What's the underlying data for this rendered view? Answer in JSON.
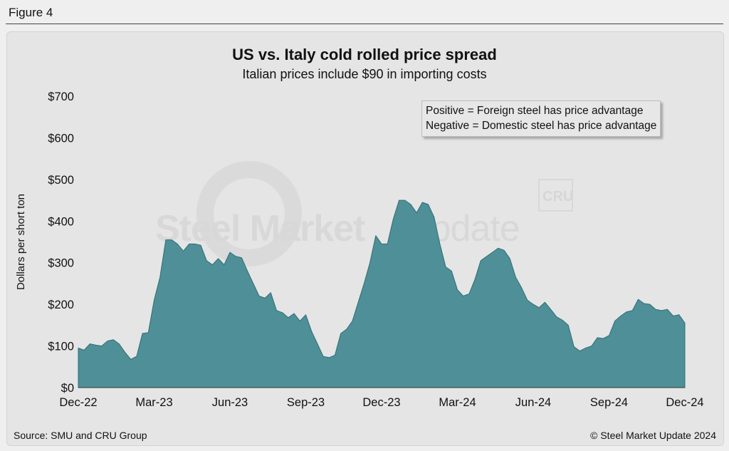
{
  "figure_label": "Figure 4",
  "legend": {
    "line1": "Positive = Foreign steel has price advantage",
    "line2": "Negative = Domestic steel has price advantage"
  },
  "watermark": {
    "text_bold": "Steel Market",
    "text_light": "Update",
    "logo": "CRU"
  },
  "footer": {
    "source": "Source: SMU and CRU Group",
    "copyright": "© Steel Market Update 2024"
  },
  "colors": {
    "area_fill": "#4f8f97",
    "area_stroke": "#2f6e76",
    "background": "#e5e5e5"
  },
  "chart_data": {
    "type": "area",
    "title": "US vs. Italy cold rolled price spread",
    "subtitle": "Italian prices include $90 in importing costs",
    "xlabel": "",
    "ylabel": "Dollars per short ton",
    "ylim": [
      0,
      700
    ],
    "yticks": [
      0,
      100,
      200,
      300,
      400,
      500,
      600,
      700
    ],
    "ytick_labels": [
      "$0",
      "$100",
      "$200",
      "$300",
      "$400",
      "$500",
      "$600",
      "$700"
    ],
    "xlim": [
      0,
      104
    ],
    "xtick_positions": [
      0,
      13,
      26,
      39,
      52,
      65,
      78,
      91,
      104
    ],
    "xtick_labels": [
      "Dec-22",
      "Mar-23",
      "Jun-23",
      "Sep-23",
      "Dec-23",
      "Mar-24",
      "Jun-24",
      "Sep-24",
      "Dec-24"
    ],
    "series": [
      {
        "name": "US vs. Italy CR spread",
        "x": [
          0,
          1,
          2,
          3,
          4,
          5,
          6,
          7,
          8,
          9,
          10,
          11,
          12,
          13,
          14,
          15,
          16,
          17,
          18,
          19,
          20,
          21,
          22,
          23,
          24,
          25,
          26,
          27,
          28,
          29,
          30,
          31,
          32,
          33,
          34,
          35,
          36,
          37,
          38,
          39,
          40,
          41,
          42,
          43,
          44,
          45,
          46,
          47,
          48,
          49,
          50,
          51,
          52,
          53,
          54,
          55,
          56,
          57,
          58,
          59,
          60,
          61,
          62,
          63,
          64,
          65,
          66,
          67,
          68,
          69,
          70,
          71,
          72,
          73,
          74,
          75,
          76,
          77,
          78,
          79,
          80,
          81,
          82,
          83,
          84,
          85,
          86,
          87,
          88,
          89,
          90,
          91,
          92,
          93,
          94,
          95,
          96,
          97,
          98,
          99,
          100,
          101,
          102,
          103,
          104
        ],
        "values": [
          95,
          90,
          105,
          102,
          100,
          112,
          115,
          105,
          85,
          68,
          75,
          130,
          132,
          210,
          265,
          355,
          355,
          345,
          328,
          345,
          345,
          342,
          305,
          295,
          310,
          295,
          325,
          315,
          312,
          280,
          250,
          220,
          215,
          228,
          185,
          180,
          168,
          178,
          160,
          175,
          135,
          105,
          75,
          72,
          78,
          130,
          140,
          160,
          205,
          250,
          300,
          365,
          345,
          345,
          405,
          450,
          450,
          440,
          420,
          445,
          440,
          410,
          345,
          290,
          280,
          235,
          220,
          225,
          260,
          305,
          315,
          325,
          335,
          330,
          310,
          265,
          240,
          210,
          200,
          192,
          205,
          188,
          170,
          162,
          150,
          98,
          88,
          95,
          100,
          120,
          118,
          125,
          160,
          172,
          182,
          185,
          212,
          202,
          200,
          188,
          185,
          188,
          172,
          175,
          155
        ]
      }
    ]
  }
}
